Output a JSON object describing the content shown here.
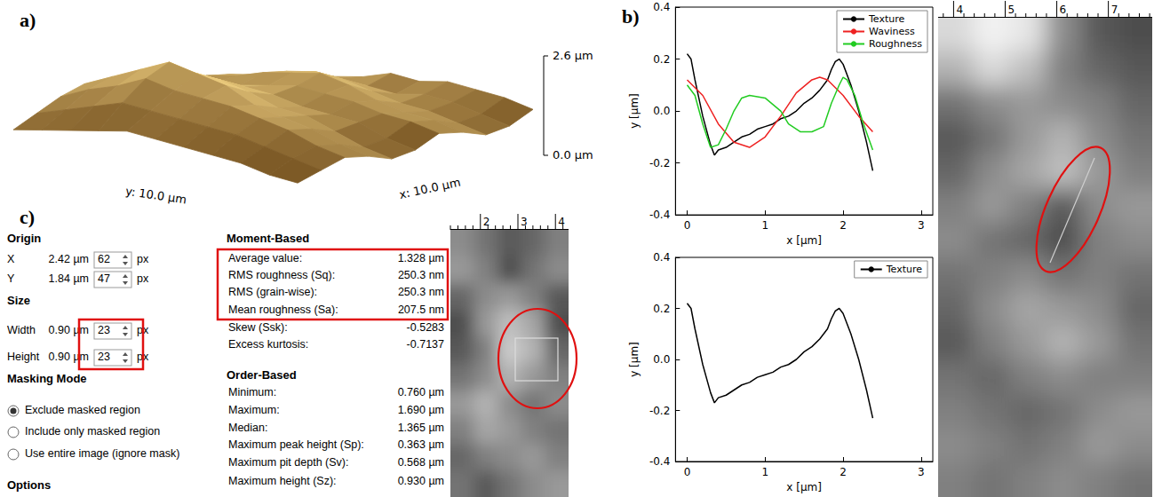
{
  "panel_a": {
    "letter": "a)",
    "surface": {
      "xlabel": "x: 10.0 µm",
      "ylabel": "y: 10.0 µm",
      "zlim": [
        0,
        2.6
      ],
      "zticks": [
        {
          "value": 0,
          "label": "0.0 µm"
        },
        {
          "value": 2.6,
          "label": "2.6 µm"
        }
      ],
      "heights": [
        [
          0.6,
          0.8,
          1.0,
          0.9,
          0.7,
          0.8,
          1.1,
          1.0,
          0.8,
          0.9,
          1.2
        ],
        [
          0.7,
          1.0,
          1.2,
          1.1,
          0.9,
          1.0,
          1.3,
          1.2,
          1.0,
          1.1,
          1.4
        ],
        [
          0.9,
          1.2,
          1.5,
          1.4,
          1.2,
          1.3,
          1.4,
          1.3,
          1.2,
          1.3,
          1.5
        ],
        [
          1.0,
          1.4,
          1.7,
          1.6,
          1.5,
          1.4,
          1.6,
          1.5,
          1.3,
          1.4,
          1.6
        ],
        [
          1.1,
          1.5,
          1.9,
          1.8,
          1.6,
          1.5,
          1.7,
          1.8,
          1.5,
          1.3,
          1.5
        ],
        [
          1.2,
          1.6,
          2.0,
          2.2,
          1.9,
          1.7,
          1.8,
          2.0,
          1.7,
          1.4,
          1.6
        ],
        [
          1.3,
          1.7,
          2.1,
          2.4,
          2.1,
          1.8,
          1.7,
          1.9,
          1.8,
          1.5,
          1.4
        ],
        [
          1.2,
          1.8,
          2.3,
          2.6,
          2.2,
          1.9,
          1.6,
          1.8,
          1.7,
          1.4,
          1.3
        ],
        [
          1.1,
          1.6,
          2.0,
          2.3,
          2.0,
          1.7,
          1.5,
          1.6,
          1.5,
          1.3,
          1.2
        ],
        [
          1.0,
          1.4,
          1.8,
          2.0,
          1.8,
          1.6,
          1.4,
          1.5,
          1.4,
          1.2,
          1.1
        ],
        [
          0.9,
          1.2,
          1.5,
          1.7,
          1.6,
          1.4,
          1.3,
          1.3,
          1.2,
          1.1,
          1.0
        ]
      ]
    }
  },
  "panel_b": {
    "letter": "b)",
    "image": {
      "ruler": {
        "xlim": [
          3.7,
          7.85
        ],
        "xticks": [
          4,
          5,
          6,
          7
        ]
      },
      "gray_levels": [
        [
          0.85,
          0.95,
          0.9,
          0.55,
          0.35,
          0.3
        ],
        [
          0.7,
          0.85,
          0.75,
          0.5,
          0.4,
          0.35
        ],
        [
          0.45,
          0.55,
          0.6,
          0.55,
          0.5,
          0.4
        ],
        [
          0.35,
          0.45,
          0.6,
          0.7,
          0.55,
          0.45
        ],
        [
          0.4,
          0.55,
          0.65,
          0.75,
          0.6,
          0.5
        ],
        [
          0.5,
          0.6,
          0.5,
          0.35,
          0.55,
          0.6
        ],
        [
          0.55,
          0.45,
          0.4,
          0.3,
          0.5,
          0.55
        ],
        [
          0.45,
          0.5,
          0.55,
          0.45,
          0.5,
          0.45
        ],
        [
          0.4,
          0.55,
          0.65,
          0.6,
          0.55,
          0.4
        ],
        [
          0.35,
          0.5,
          0.6,
          0.7,
          0.6,
          0.45
        ],
        [
          0.45,
          0.4,
          0.5,
          0.55,
          0.5,
          0.5
        ],
        [
          0.5,
          0.45,
          0.4,
          0.45,
          0.55,
          0.6
        ],
        [
          0.55,
          0.5,
          0.45,
          0.5,
          0.6,
          0.55
        ],
        [
          0.5,
          0.45,
          0.5,
          0.55,
          0.5,
          0.45
        ]
      ]
    }
  },
  "chart_data": [
    {
      "type": "line",
      "xlabel": "x [µm]",
      "ylabel": "y [µm]",
      "xlim": [
        -0.15,
        3.15
      ],
      "xticks": [
        0,
        1,
        2,
        3
      ],
      "ylim": [
        -0.4,
        0.4
      ],
      "yticks": [
        -0.4,
        -0.2,
        {
          "value": 0,
          "label": "0.0"
        },
        0.2,
        0.4
      ],
      "grid": false,
      "legend": "upper right",
      "series": [
        {
          "name": "Texture",
          "color": "#000000",
          "x": [
            0,
            0.05,
            0.1,
            0.2,
            0.3,
            0.35,
            0.4,
            0.5,
            0.6,
            0.7,
            0.8,
            0.9,
            1.0,
            1.1,
            1.2,
            1.3,
            1.4,
            1.5,
            1.6,
            1.7,
            1.8,
            1.85,
            1.9,
            1.95,
            2.0,
            2.1,
            2.2,
            2.3,
            2.38
          ],
          "values": [
            0.22,
            0.2,
            0.12,
            -0.02,
            -0.13,
            -0.17,
            -0.15,
            -0.14,
            -0.12,
            -0.1,
            -0.09,
            -0.07,
            -0.06,
            -0.05,
            -0.03,
            -0.02,
            0.0,
            0.03,
            0.05,
            0.08,
            0.12,
            0.16,
            0.19,
            0.2,
            0.18,
            0.1,
            0.0,
            -0.12,
            -0.23
          ]
        },
        {
          "name": "Waviness",
          "color": "#ee2222",
          "x": [
            0,
            0.2,
            0.4,
            0.6,
            0.8,
            1.0,
            1.2,
            1.4,
            1.6,
            1.7,
            1.8,
            2.0,
            2.2,
            2.38
          ],
          "values": [
            0.12,
            0.06,
            -0.05,
            -0.12,
            -0.14,
            -0.1,
            -0.02,
            0.07,
            0.12,
            0.13,
            0.12,
            0.06,
            -0.02,
            -0.08
          ]
        },
        {
          "name": "Roughness",
          "color": "#22cc22",
          "x": [
            0,
            0.1,
            0.2,
            0.3,
            0.4,
            0.5,
            0.6,
            0.7,
            0.8,
            1.0,
            1.2,
            1.3,
            1.45,
            1.6,
            1.75,
            1.85,
            1.95,
            2.0,
            2.05,
            2.15,
            2.25,
            2.38
          ],
          "values": [
            0.1,
            0.06,
            -0.05,
            -0.14,
            -0.13,
            -0.07,
            0.0,
            0.05,
            0.06,
            0.05,
            0.0,
            -0.05,
            -0.08,
            -0.08,
            -0.06,
            0.03,
            0.1,
            0.13,
            0.12,
            0.06,
            -0.04,
            -0.15
          ]
        }
      ]
    },
    {
      "type": "line",
      "xlabel": "x [µm]",
      "ylabel": "y [µm]",
      "xlim": [
        -0.15,
        3.15
      ],
      "xticks": [
        0,
        1,
        2,
        3
      ],
      "ylim": [
        -0.4,
        0.4
      ],
      "yticks": [
        -0.4,
        -0.2,
        {
          "value": 0,
          "label": "0.0"
        },
        0.2,
        0.4
      ],
      "grid": false,
      "legend": "upper right",
      "series": [
        {
          "name": "Texture",
          "color": "#000000",
          "x": [
            0,
            0.05,
            0.1,
            0.2,
            0.3,
            0.35,
            0.4,
            0.5,
            0.6,
            0.7,
            0.8,
            0.9,
            1.0,
            1.1,
            1.2,
            1.3,
            1.4,
            1.5,
            1.6,
            1.7,
            1.8,
            1.85,
            1.9,
            1.95,
            2.0,
            2.1,
            2.2,
            2.3,
            2.38
          ],
          "values": [
            0.22,
            0.2,
            0.12,
            -0.02,
            -0.13,
            -0.17,
            -0.15,
            -0.14,
            -0.12,
            -0.1,
            -0.09,
            -0.07,
            -0.06,
            -0.05,
            -0.03,
            -0.02,
            0.0,
            0.03,
            0.05,
            0.08,
            0.12,
            0.16,
            0.19,
            0.2,
            0.18,
            0.1,
            0.0,
            -0.12,
            -0.23
          ]
        }
      ]
    }
  ],
  "panel_c": {
    "letter": "c)",
    "settings": [
      {
        "heading": "Origin",
        "rows": [
          {
            "label": "X",
            "value": "2.42 µm",
            "pixels": 62,
            "unit": "px"
          },
          {
            "label": "Y",
            "value": "1.84 µm",
            "pixels": 47,
            "unit": "px"
          }
        ]
      },
      {
        "heading": "Size",
        "rows": [
          {
            "label": "Width",
            "value": "0.90 µm",
            "pixels": 23,
            "unit": "px"
          },
          {
            "label": "Height",
            "value": "0.90 µm",
            "pixels": 23,
            "unit": "px"
          }
        ]
      },
      {
        "heading": "Masking Mode",
        "options": [
          {
            "label": "Exclude masked region",
            "selected": true
          },
          {
            "label": "Include only masked region",
            "selected": false
          },
          {
            "label": "Use entire image (ignore mask)",
            "selected": false
          }
        ]
      },
      {
        "heading": "Options"
      }
    ],
    "statistics": [
      {
        "heading": "Moment-Based",
        "rows": [
          {
            "label": "Average value:",
            "value": "1.328 µm"
          },
          {
            "label": "RMS roughness (Sq):",
            "value": "250.3 nm"
          },
          {
            "label": "RMS (grain-wise):",
            "value": "250.3 nm"
          },
          {
            "label": "Mean roughness (Sa):",
            "value": "207.5 nm"
          },
          {
            "label": "Skew (Ssk):",
            "value": "-0.5283"
          },
          {
            "label": "Excess kurtosis:",
            "value": "-0.7137"
          }
        ]
      },
      {
        "heading": "Order-Based",
        "rows": [
          {
            "label": "Minimum:",
            "value": "0.760 µm"
          },
          {
            "label": "Maximum:",
            "value": "1.690 µm"
          },
          {
            "label": "Median:",
            "value": "1.365 µm"
          },
          {
            "label": "Maximum peak height (Sp):",
            "value": "0.363 µm"
          },
          {
            "label": "Maximum pit depth (Sv):",
            "value": "0.568 µm"
          },
          {
            "label": "Maximum height (Sz):",
            "value": "0.930 µm"
          }
        ]
      }
    ],
    "image": {
      "ruler": {
        "xlim": [
          1.2,
          4.35
        ],
        "xticks": [
          2,
          3,
          4
        ]
      },
      "gray_levels": [
        [
          0.55,
          0.45,
          0.35,
          0.4,
          0.5
        ],
        [
          0.6,
          0.5,
          0.3,
          0.45,
          0.55
        ],
        [
          0.4,
          0.55,
          0.6,
          0.5,
          0.35
        ],
        [
          0.3,
          0.6,
          0.75,
          0.65,
          0.3
        ],
        [
          0.35,
          0.5,
          0.8,
          0.7,
          0.4
        ],
        [
          0.45,
          0.55,
          0.7,
          0.6,
          0.5
        ],
        [
          0.6,
          0.7,
          0.55,
          0.45,
          0.55
        ],
        [
          0.5,
          0.65,
          0.6,
          0.5,
          0.45
        ],
        [
          0.4,
          0.5,
          0.55,
          0.6,
          0.5
        ],
        [
          0.45,
          0.35,
          0.45,
          0.55,
          0.6
        ]
      ]
    }
  }
}
